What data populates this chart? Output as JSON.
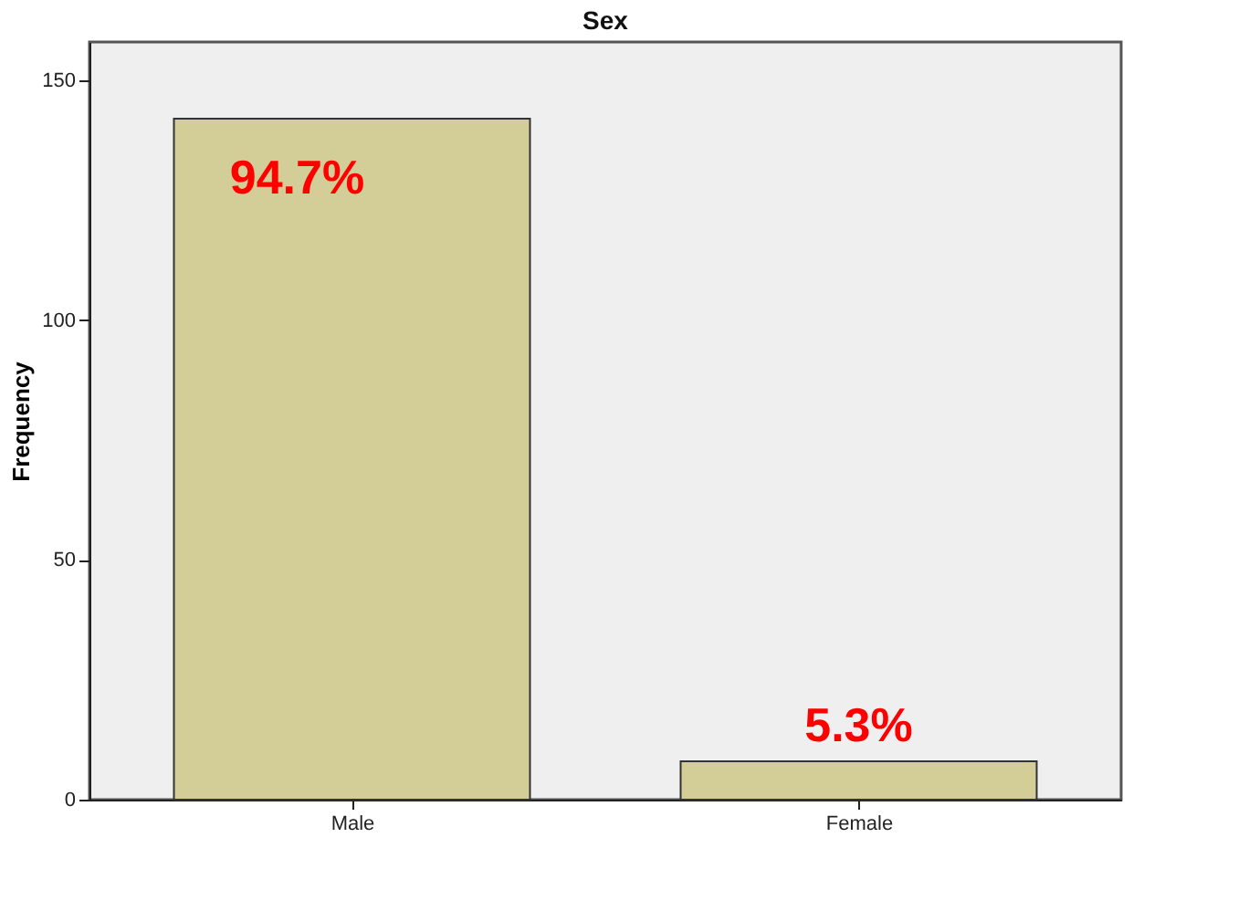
{
  "chart_data": {
    "type": "bar",
    "title": "Sex",
    "ylabel": "Frequency",
    "categories": [
      "Male",
      "Female"
    ],
    "values": [
      142,
      8
    ],
    "color": "#d3ce97",
    "ylim": [
      0,
      158
    ],
    "yticks": [
      0,
      50,
      100,
      150
    ],
    "grid": false,
    "annotations": [
      "94.7%",
      "5.3%"
    ]
  }
}
